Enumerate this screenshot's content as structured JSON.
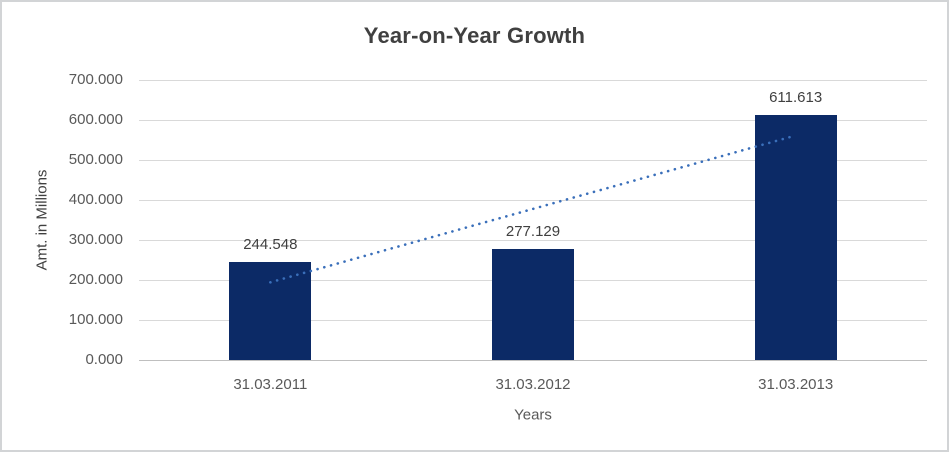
{
  "chart": {
    "title": "Year-on-Year Growth",
    "y_axis_title": "Amt. in Millions",
    "x_axis_title": "Years"
  },
  "chart_data": {
    "type": "bar",
    "title": "Year-on-Year Growth",
    "xlabel": "Years",
    "ylabel": "Amt. in Millions",
    "categories": [
      "31.03.2011",
      "31.03.2012",
      "31.03.2013"
    ],
    "values": [
      244.548,
      277.129,
      611.613
    ],
    "data_labels": [
      "244.548",
      "277.129",
      "611.613"
    ],
    "yticks": {
      "values": [
        0,
        100,
        200,
        300,
        400,
        500,
        600,
        700
      ],
      "labels": [
        "0.000",
        "100.000",
        "200.000",
        "300.000",
        "400.000",
        "500.000",
        "600.000",
        "700.000"
      ]
    },
    "ylim": [
      0,
      700
    ],
    "grid": "horizontal",
    "legend": "none",
    "trendline": {
      "type": "linear",
      "style": "dotted",
      "start_value": 194.2,
      "end_value": 561.3
    },
    "colors": {
      "bar": "#0c2a66",
      "trendline": "#3a6fba",
      "gridline": "#d9d9d9",
      "axis_line": "#bfbfbf",
      "title_text": "#404040",
      "tick_text": "#595959",
      "data_label_text": "#404040",
      "frame_border": "#d2d4d6",
      "background": "#ffffff"
    }
  }
}
